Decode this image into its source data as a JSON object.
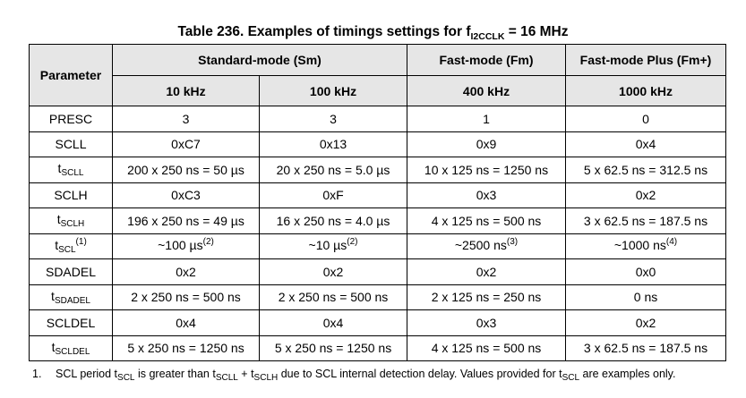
{
  "title": {
    "prefix": "Table 236. Examples of timings settings for f",
    "sub": "I2CCLK",
    "suffix": " = 16 MHz"
  },
  "headers": {
    "parameter": "Parameter",
    "groups": [
      "Standard-mode (Sm)",
      "Fast-mode (Fm)",
      "Fast-mode Plus (Fm+)"
    ],
    "freqs": [
      "10 kHz",
      "100 kHz",
      "400 kHz",
      "1000 kHz"
    ]
  },
  "rows": [
    {
      "p": "PRESC",
      "v": [
        "3",
        "3",
        "1",
        "0"
      ]
    },
    {
      "p": "SCLL",
      "v": [
        "0xC7",
        "0x13",
        "0x9",
        "0x4"
      ]
    },
    {
      "p": "t",
      "psub": "SCLL",
      "v": [
        "200 x 250 ns = 50 µs",
        "20 x 250 ns = 5.0 µs",
        "10 x 125 ns = 1250 ns",
        "5 x 62.5 ns = 312.5 ns"
      ]
    },
    {
      "p": "SCLH",
      "v": [
        "0xC3",
        "0xF",
        "0x3",
        "0x2"
      ]
    },
    {
      "p": "t",
      "psub": "SCLH",
      "v": [
        "196 x 250 ns = 49 µs",
        "16 x 250 ns = 4.0 µs",
        "4 x 125 ns = 500 ns",
        "3 x 62.5 ns = 187.5 ns"
      ]
    },
    {
      "p": "t",
      "psub": "SCL",
      "psup": "(1)",
      "v": [
        "~100 µs",
        "~10 µs",
        "~2500 ns",
        "~1000 ns"
      ],
      "vsup": [
        "(2)",
        "(2)",
        "(3)",
        "(4)"
      ]
    },
    {
      "p": "SDADEL",
      "v": [
        "0x2",
        "0x2",
        "0x2",
        "0x0"
      ]
    },
    {
      "p": "t",
      "psub": "SDADEL",
      "v": [
        "2 x 250 ns = 500 ns",
        "2 x 250 ns = 500 ns",
        "2 x 125 ns = 250 ns",
        "0 ns"
      ]
    },
    {
      "p": "SCLDEL",
      "v": [
        "0x4",
        "0x4",
        "0x3",
        "0x2"
      ]
    },
    {
      "p": "t",
      "psub": "SCLDEL",
      "v": [
        "5 x 250 ns = 1250 ns",
        "5 x 250 ns = 1250 ns",
        "4 x 125 ns = 500 ns",
        "3 x 62.5 ns = 187.5 ns"
      ]
    }
  ],
  "footnote": {
    "number": "1.",
    "parts": [
      "SCL period t",
      "SCL",
      " is greater than t",
      "SCLL",
      " + t",
      "SCLH",
      " due to SCL internal detection delay. Values provided for t",
      "SCL",
      " are examples only."
    ]
  }
}
